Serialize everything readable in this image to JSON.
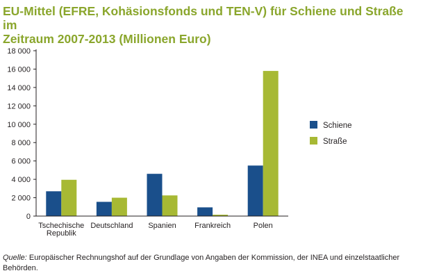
{
  "chart_data": {
    "type": "bar",
    "title_line1": "EU-Mittel (EFRE, Kohäsionsfonds und TEN-V) für Schiene und Straße im",
    "title_line2": "Zeitraum 2007-2013 (Millionen Euro)",
    "categories": [
      [
        "Tschechische",
        "Republik"
      ],
      [
        "Deutschland"
      ],
      [
        "Spanien"
      ],
      [
        "Frankreich"
      ],
      [
        "Polen"
      ]
    ],
    "series": [
      {
        "name": "Schiene",
        "color": "#1a4f8b",
        "values": [
          2700,
          1550,
          4600,
          950,
          5500
        ]
      },
      {
        "name": "Straße",
        "color": "#a7b934",
        "values": [
          3950,
          2000,
          2250,
          150,
          15800
        ]
      }
    ],
    "yticks": [
      "0",
      "2 000",
      "4 000",
      "6 000",
      "8 000",
      "10 000",
      "12 000",
      "14 000",
      "16 000",
      "18 000"
    ],
    "ylim": [
      0,
      18000
    ],
    "xlabel": "",
    "ylabel": "",
    "grid": false,
    "legend_position": "right"
  },
  "source": {
    "label": "Quelle:",
    "text": "Europäischer Rechnungshof auf der Grundlage von Angaben der Kommission, der INEA und einzelstaatlicher Behörden."
  }
}
